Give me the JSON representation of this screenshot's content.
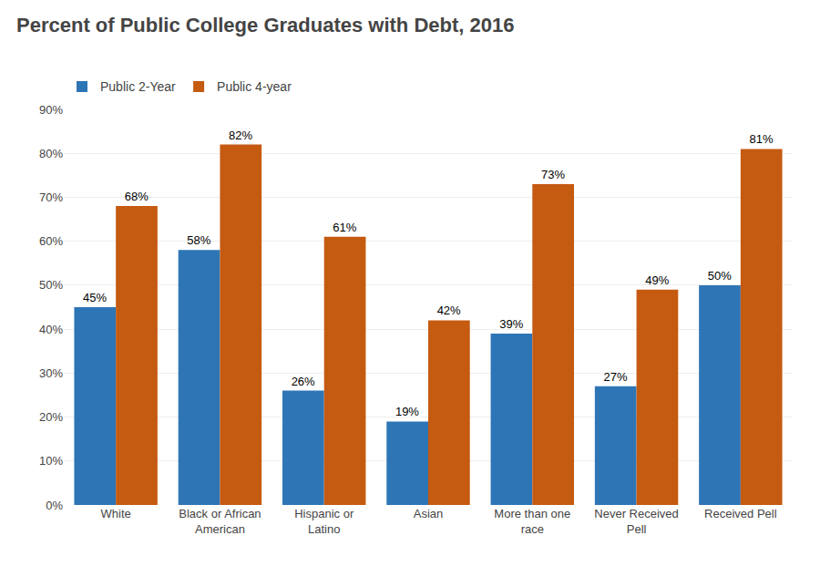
{
  "chart_data": {
    "type": "bar",
    "title": "Percent of Public College Graduates with Debt, 2016",
    "categories": [
      "White",
      "Black or African\nAmerican",
      "Hispanic or\nLatino",
      "Asian",
      "More than one\nrace",
      "Never Received\nPell",
      "Received Pell"
    ],
    "series": [
      {
        "name": "Public 2-Year",
        "color": "#2E75B6",
        "values": [
          45,
          58,
          26,
          19,
          39,
          27,
          50
        ],
        "value_labels": [
          "45%",
          "58%",
          "26%",
          "19%",
          "39%",
          "27%",
          "50%"
        ]
      },
      {
        "name": "Public 4-year",
        "color": "#C55A11",
        "values": [
          68,
          82,
          61,
          42,
          73,
          49,
          81
        ],
        "value_labels": [
          "68%",
          "82%",
          "61%",
          "42%",
          "73%",
          "49%",
          "81%"
        ]
      }
    ],
    "ylim": [
      0,
      90
    ],
    "yticks": [
      {
        "value": 0,
        "label": "0%"
      },
      {
        "value": 10,
        "label": "10%"
      },
      {
        "value": 20,
        "label": "20%"
      },
      {
        "value": 30,
        "label": "30%"
      },
      {
        "value": 40,
        "label": "40%"
      },
      {
        "value": 50,
        "label": "50%"
      },
      {
        "value": 60,
        "label": "60%"
      },
      {
        "value": 70,
        "label": "70%"
      },
      {
        "value": 80,
        "label": "80%"
      },
      {
        "value": 90,
        "label": "90%"
      }
    ],
    "grid": true,
    "legend": "upper left",
    "data_labels": true
  }
}
